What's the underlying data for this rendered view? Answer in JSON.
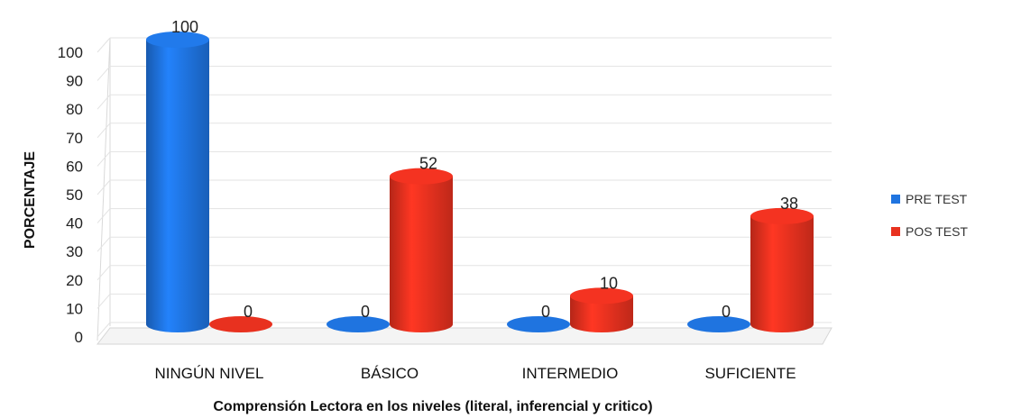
{
  "chart_data": {
    "type": "bar",
    "categories": [
      "NINGÚN NIVEL",
      "BÁSICO",
      "INTERMEDIO",
      "SUFICIENTE"
    ],
    "series": [
      {
        "name": "PRE TEST",
        "values": [
          100,
          0,
          0,
          0
        ],
        "color": "#1f74e0"
      },
      {
        "name": "POS TEST",
        "values": [
          0,
          52,
          10,
          38
        ],
        "color": "#e8311f"
      }
    ],
    "yticks": [
      0,
      10,
      20,
      30,
      40,
      50,
      60,
      70,
      80,
      90,
      100
    ],
    "ylim": [
      0,
      100
    ],
    "xlabel": "Comprensión Lectora en los niveles (literal, inferencial y critico)",
    "ylabel": "PORCENTAJE",
    "grid": true,
    "legend": "right",
    "style": "3d-cylinder"
  }
}
